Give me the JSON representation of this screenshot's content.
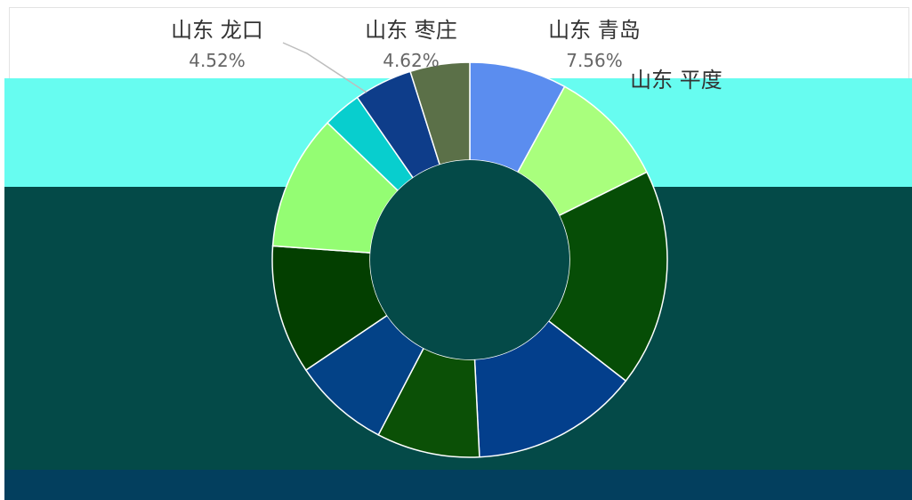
{
  "chart_data": {
    "type": "pie",
    "variant": "donut",
    "slices": [
      {
        "label": "山东 青岛",
        "value": 7.56,
        "display": "7.56%",
        "color": "#5b8def"
      },
      {
        "label": "山东 平度",
        "value": 9.2,
        "display": "",
        "color": "#a9ff7d"
      },
      {
        "label": "",
        "value": 16.9,
        "display": "",
        "color": "#064d06"
      },
      {
        "label": "",
        "value": 13.0,
        "display": "",
        "color": "#033f8c"
      },
      {
        "label": "",
        "value": 8.0,
        "display": "",
        "color": "#0b5006"
      },
      {
        "label": "",
        "value": 7.5,
        "display": "",
        "color": "#034287"
      },
      {
        "label": "",
        "value": 10.0,
        "display": "",
        "color": "#033f00"
      },
      {
        "label": "",
        "value": 10.5,
        "display": "",
        "color": "#94fd73"
      },
      {
        "label": "",
        "value": 3.0,
        "display": "",
        "color": "#08cece"
      },
      {
        "label": "山东 龙口",
        "value": 4.52,
        "display": "4.52%",
        "color": "#0e3d8a"
      },
      {
        "label": "山东 枣庄",
        "value": 4.62,
        "display": "4.62%",
        "color": "#5b7048"
      }
    ],
    "legend": "none"
  },
  "colors": {
    "leader_line": "#bdbdbd",
    "label_name": "#333333",
    "label_pct": "#666666"
  }
}
